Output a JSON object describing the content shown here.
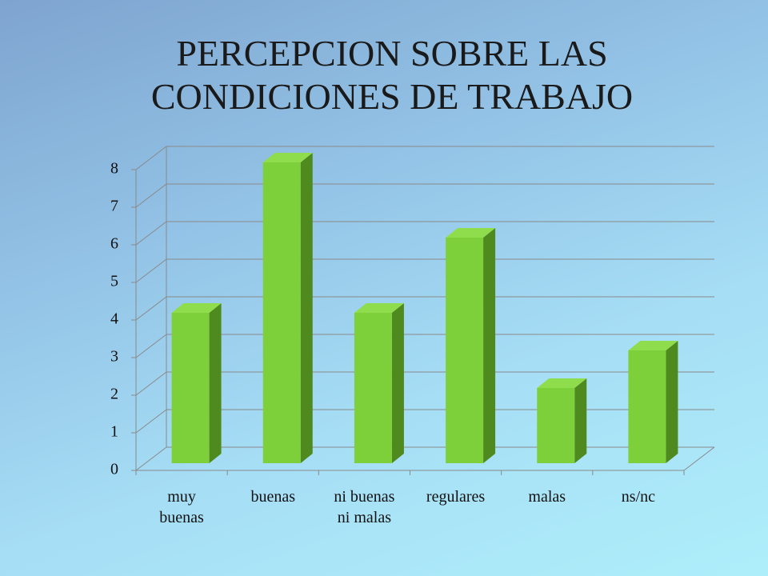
{
  "chart_data": {
    "type": "bar",
    "title": "PERCEPCION SOBRE LAS CONDICIONES DE TRABAJO",
    "categories": [
      "muy buenas",
      "buenas",
      "ni buenas ni malas",
      "regulares",
      "malas",
      "ns/nc"
    ],
    "values": [
      4,
      8,
      4,
      6,
      2,
      3
    ],
    "color": "#7ed03a",
    "ylim": [
      0,
      8
    ],
    "yticks": [
      0,
      1,
      2,
      3,
      4,
      5,
      6,
      7,
      8
    ],
    "grid": true
  }
}
